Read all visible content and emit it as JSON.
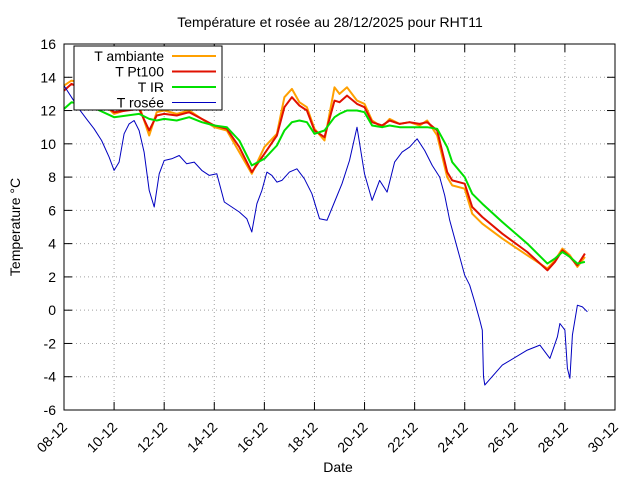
{
  "chart_data": {
    "type": "line",
    "title": "Température et rosée au 28/12/2025 pour RHT11",
    "xlabel": "Date",
    "ylabel": "Temperature °C",
    "xlim": [
      8,
      30
    ],
    "ylim": [
      -6,
      16
    ],
    "x_unit": "day of December 2025",
    "x_ticks": [
      8,
      10,
      12,
      14,
      16,
      18,
      20,
      22,
      24,
      26,
      28,
      30
    ],
    "x_tick_labels": [
      "08-12",
      "10-12",
      "12-12",
      "14-12",
      "16-12",
      "18-12",
      "20-12",
      "22-12",
      "24-12",
      "26-12",
      "28-12",
      "30-12"
    ],
    "y_ticks": [
      -6,
      -4,
      -2,
      0,
      2,
      4,
      6,
      8,
      10,
      12,
      14,
      16
    ],
    "y_tick_labels": [
      "-6",
      "-4",
      "-2",
      "0",
      "2",
      "4",
      "6",
      "8",
      "10",
      "12",
      "14",
      "16"
    ],
    "grid": true,
    "legend_position": "top-left",
    "series": [
      {
        "name": "T ambiante",
        "color": "#ffa000",
        "x": [
          8.0,
          8.3,
          8.6,
          9.0,
          10.0,
          11.0,
          11.4,
          11.7,
          12.0,
          12.5,
          13.0,
          13.5,
          14.0,
          14.5,
          15.0,
          15.5,
          16.0,
          16.5,
          16.8,
          17.1,
          17.4,
          17.7,
          18.0,
          18.4,
          18.8,
          19.0,
          19.3,
          19.7,
          20.0,
          20.3,
          20.7,
          21.0,
          21.4,
          21.8,
          22.2,
          22.5,
          22.9,
          23.3,
          23.5,
          24.0,
          24.3,
          24.7,
          25.5,
          26.5,
          27.3,
          27.6,
          27.9,
          28.2,
          28.5,
          28.8
        ],
        "y": [
          13.5,
          13.8,
          13.7,
          13.2,
          11.8,
          12.3,
          10.5,
          11.9,
          12.0,
          11.8,
          12.0,
          11.5,
          11.0,
          10.8,
          9.5,
          8.2,
          9.8,
          10.6,
          12.8,
          13.3,
          12.5,
          12.2,
          10.9,
          10.2,
          13.4,
          13.0,
          13.4,
          12.6,
          12.4,
          11.4,
          11.0,
          11.5,
          11.2,
          11.3,
          11.1,
          11.4,
          10.5,
          8.0,
          7.5,
          7.3,
          5.8,
          5.2,
          4.3,
          3.3,
          2.5,
          3.0,
          3.7,
          3.3,
          2.6,
          3.2
        ],
        "linewidth": 2
      },
      {
        "name": "T Pt100",
        "color": "#e01000",
        "x": [
          8.0,
          8.3,
          8.6,
          9.0,
          10.0,
          11.0,
          11.4,
          11.7,
          12.0,
          12.5,
          13.0,
          13.5,
          14.0,
          14.5,
          15.0,
          15.5,
          16.0,
          16.5,
          16.8,
          17.1,
          17.4,
          17.7,
          18.0,
          18.4,
          18.8,
          19.0,
          19.3,
          19.7,
          20.0,
          20.3,
          20.7,
          21.0,
          21.4,
          21.8,
          22.2,
          22.5,
          22.9,
          23.3,
          23.5,
          24.0,
          24.3,
          24.7,
          25.5,
          26.5,
          27.3,
          27.6,
          27.9,
          28.2,
          28.5,
          28.8
        ],
        "y": [
          13.2,
          13.6,
          13.4,
          13.0,
          11.9,
          12.1,
          10.8,
          11.7,
          11.8,
          11.7,
          11.9,
          11.5,
          11.1,
          10.9,
          9.8,
          8.3,
          9.4,
          10.5,
          12.2,
          12.8,
          12.3,
          12.0,
          10.8,
          10.4,
          12.6,
          12.5,
          12.9,
          12.4,
          12.2,
          11.3,
          11.1,
          11.4,
          11.2,
          11.3,
          11.2,
          11.3,
          10.8,
          8.3,
          7.8,
          7.6,
          6.2,
          5.6,
          4.6,
          3.5,
          2.4,
          2.9,
          3.6,
          3.2,
          2.7,
          3.4
        ],
        "linewidth": 2
      },
      {
        "name": "T IR",
        "color": "#00e000",
        "x": [
          8.0,
          8.3,
          8.6,
          9.0,
          10.0,
          11.0,
          11.4,
          11.7,
          12.0,
          12.5,
          13.0,
          13.5,
          14.0,
          14.5,
          15.0,
          15.5,
          16.0,
          16.5,
          16.8,
          17.1,
          17.4,
          17.7,
          18.0,
          18.4,
          18.8,
          19.0,
          19.3,
          19.7,
          20.0,
          20.3,
          20.7,
          21.0,
          21.4,
          21.8,
          22.2,
          22.5,
          22.9,
          23.3,
          23.5,
          24.0,
          24.3,
          24.7,
          25.5,
          26.5,
          27.3,
          27.6,
          27.9,
          28.2,
          28.5,
          28.8
        ],
        "y": [
          12.1,
          12.5,
          12.4,
          12.3,
          11.6,
          11.8,
          11.5,
          11.4,
          11.5,
          11.4,
          11.6,
          11.3,
          11.1,
          11.0,
          10.2,
          8.7,
          9.1,
          9.9,
          10.8,
          11.3,
          11.4,
          11.3,
          10.6,
          10.8,
          11.6,
          11.8,
          12.0,
          12.0,
          11.9,
          11.1,
          11.0,
          11.1,
          11.0,
          11.0,
          11.0,
          11.0,
          10.9,
          9.8,
          8.9,
          8.0,
          7.0,
          6.4,
          5.3,
          4.0,
          2.8,
          3.1,
          3.5,
          3.2,
          2.8,
          2.9
        ],
        "linewidth": 2
      },
      {
        "name": "T rosée",
        "color": "#0000c0",
        "x": [
          8.0,
          8.3,
          8.6,
          8.9,
          9.2,
          9.5,
          9.8,
          10.0,
          10.2,
          10.4,
          10.6,
          10.8,
          11.0,
          11.2,
          11.4,
          11.6,
          11.8,
          12.0,
          12.3,
          12.6,
          12.9,
          13.2,
          13.5,
          13.8,
          14.1,
          14.4,
          14.7,
          15.0,
          15.3,
          15.5,
          15.7,
          15.9,
          16.1,
          16.3,
          16.5,
          16.7,
          17.0,
          17.3,
          17.6,
          17.9,
          18.2,
          18.5,
          18.8,
          19.1,
          19.4,
          19.7,
          20.0,
          20.3,
          20.6,
          20.9,
          21.2,
          21.5,
          21.8,
          22.1,
          22.4,
          22.7,
          23.0,
          23.2,
          23.4,
          23.6,
          23.8,
          24.0,
          24.2,
          24.4,
          24.6,
          24.7,
          24.75,
          24.8,
          25.5,
          26.5,
          27.0,
          27.4,
          27.7,
          27.8,
          28.0,
          28.1,
          28.2,
          28.3,
          28.5,
          28.7,
          28.9
        ],
        "y": [
          13.5,
          12.8,
          12.1,
          11.5,
          10.9,
          10.2,
          9.2,
          8.4,
          8.9,
          10.6,
          11.2,
          11.4,
          10.8,
          9.5,
          7.2,
          6.2,
          8.2,
          9.0,
          9.1,
          9.3,
          8.8,
          8.9,
          8.4,
          8.1,
          8.2,
          6.5,
          6.2,
          5.9,
          5.5,
          4.7,
          6.4,
          7.2,
          8.3,
          8.1,
          7.7,
          7.8,
          8.3,
          8.5,
          7.9,
          7.0,
          5.5,
          5.4,
          6.5,
          7.6,
          9.0,
          11.0,
          8.2,
          6.6,
          7.8,
          7.1,
          8.9,
          9.5,
          9.8,
          10.3,
          9.6,
          8.7,
          8.0,
          6.9,
          5.4,
          4.3,
          3.2,
          2.1,
          1.5,
          0.5,
          -0.6,
          -1.2,
          -4.0,
          -4.5,
          -3.3,
          -2.4,
          -2.1,
          -2.9,
          -1.6,
          -0.8,
          -1.2,
          -3.5,
          -4.1,
          -1.5,
          0.3,
          0.2,
          -0.1
        ],
        "linewidth": 1
      }
    ]
  }
}
